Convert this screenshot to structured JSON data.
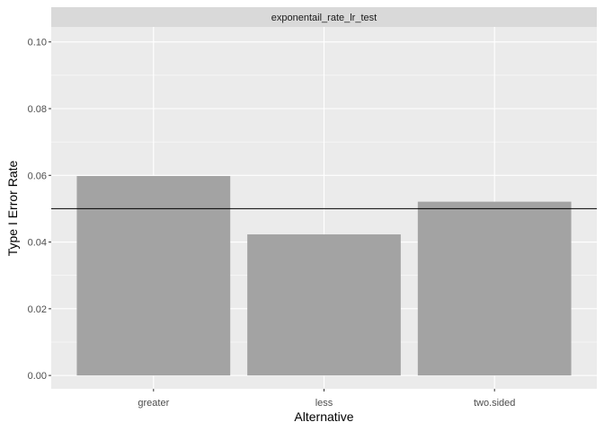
{
  "chart_data": {
    "type": "bar",
    "facet_title": "exponentail_rate_lr_test",
    "categories": [
      "greater",
      "less",
      "two.sided"
    ],
    "values": [
      0.0598,
      0.0423,
      0.0521
    ],
    "xlabel": "Alternative",
    "ylabel": "Type I Error Rate",
    "ylim": [
      -0.004,
      0.1045
    ],
    "yticks": [
      "0.00",
      "0.02",
      "0.04",
      "0.06",
      "0.08",
      "0.10"
    ],
    "ytick_values": [
      0,
      0.02,
      0.04,
      0.06,
      0.08,
      0.1
    ],
    "reference_line": 0.05,
    "grid": true,
    "colors": {
      "panel_bg": "#ebebeb",
      "strip_bg": "#d9d9d9",
      "grid": "#ffffff",
      "bar": "#a3a3a3",
      "reference_line": "#000000"
    }
  }
}
